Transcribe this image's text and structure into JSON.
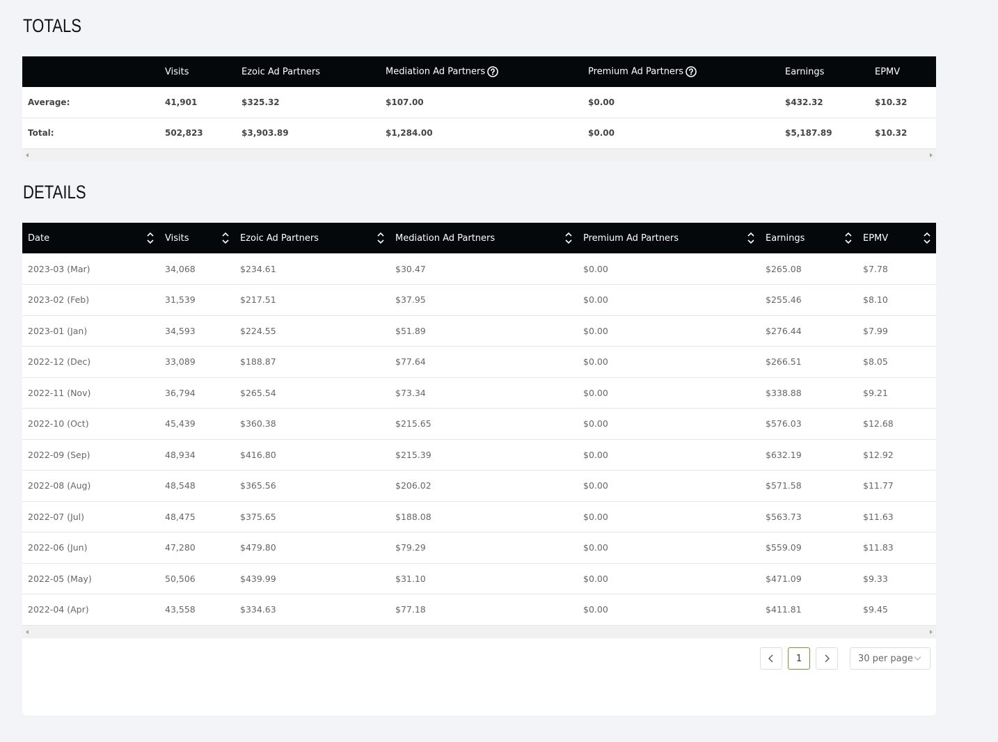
{
  "totals": {
    "title": "TOTALS",
    "headers": [
      "",
      "Visits",
      "Ezoic Ad Partners",
      "Mediation Ad Partners",
      "Premium Ad Partners",
      "Earnings",
      "EPMV"
    ],
    "rows": [
      [
        "Average:",
        "41,901",
        "$325.32",
        "$107.00",
        "$0.00",
        "$432.32",
        "$10.32"
      ],
      [
        "Total:",
        "502,823",
        "$3,903.89",
        "$1,284.00",
        "$0.00",
        "$5,187.89",
        "$10.32"
      ]
    ]
  },
  "details": {
    "title": "DETAILS",
    "headers": [
      "Date",
      "Visits",
      "Ezoic Ad Partners",
      "Mediation Ad Partners",
      "Premium Ad Partners",
      "Earnings",
      "EPMV"
    ],
    "rows": [
      [
        "2023-03 (Mar)",
        "34,068",
        "$234.61",
        "$30.47",
        "$0.00",
        "$265.08",
        "$7.78"
      ],
      [
        "2023-02 (Feb)",
        "31,539",
        "$217.51",
        "$37.95",
        "$0.00",
        "$255.46",
        "$8.10"
      ],
      [
        "2023-01 (Jan)",
        "34,593",
        "$224.55",
        "$51.89",
        "$0.00",
        "$276.44",
        "$7.99"
      ],
      [
        "2022-12 (Dec)",
        "33,089",
        "$188.87",
        "$77.64",
        "$0.00",
        "$266.51",
        "$8.05"
      ],
      [
        "2022-11 (Nov)",
        "36,794",
        "$265.54",
        "$73.34",
        "$0.00",
        "$338.88",
        "$9.21"
      ],
      [
        "2022-10 (Oct)",
        "45,439",
        "$360.38",
        "$215.65",
        "$0.00",
        "$576.03",
        "$12.68"
      ],
      [
        "2022-09 (Sep)",
        "48,934",
        "$416.80",
        "$215.39",
        "$0.00",
        "$632.19",
        "$12.92"
      ],
      [
        "2022-08 (Aug)",
        "48,548",
        "$365.56",
        "$206.02",
        "$0.00",
        "$571.58",
        "$11.77"
      ],
      [
        "2022-07 (Jul)",
        "48,475",
        "$375.65",
        "$188.08",
        "$0.00",
        "$563.73",
        "$11.63"
      ],
      [
        "2022-06 (Jun)",
        "47,280",
        "$479.80",
        "$79.29",
        "$0.00",
        "$559.09",
        "$11.83"
      ],
      [
        "2022-05 (May)",
        "50,506",
        "$439.99",
        "$31.10",
        "$0.00",
        "$471.09",
        "$9.33"
      ],
      [
        "2022-04 (Apr)",
        "43,558",
        "$334.63",
        "$77.18",
        "$0.00",
        "$411.81",
        "$9.45"
      ]
    ]
  },
  "pagination": {
    "current_page": "1",
    "per_page": "30 per page"
  },
  "icons": {
    "help": "question-circle-icon",
    "sort": "sort-arrows-icon",
    "prev": "chevron-left-icon",
    "next": "chevron-right-icon",
    "dropdown": "chevron-down-icon"
  }
}
